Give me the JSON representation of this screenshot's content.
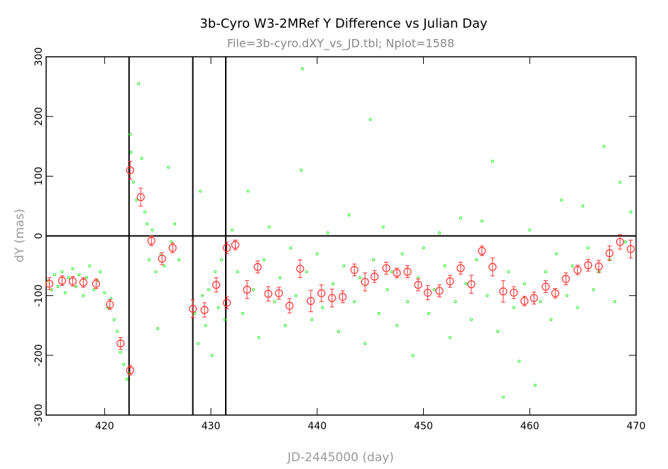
{
  "chart_data": {
    "type": "scatter",
    "title": "3b-Cyro W3-2MRef Y Difference vs Julian Day",
    "subtitle": "File=3b-cyro.dXY_vs_JD.tbl; Nplot=1588",
    "xlabel": "JD-2445000 (day)",
    "ylabel": "dY (mas)",
    "xlim": [
      414.5,
      470
    ],
    "ylim": [
      -300,
      300
    ],
    "xticks": [
      420,
      430,
      440,
      450,
      460,
      470
    ],
    "yticks": [
      -300,
      -200,
      -100,
      0,
      100,
      200,
      300
    ],
    "vlines": [
      422.3,
      428.3,
      431.4
    ],
    "hlines": [
      0
    ],
    "series": [
      {
        "color": "#00ee00",
        "marker": "dot",
        "x": [
          414.7,
          415,
          415.3,
          415.6,
          416,
          416.3,
          416.6,
          417,
          417.3,
          417.6,
          418,
          418.3,
          418.6,
          419,
          419.3,
          419.6,
          420,
          420.3,
          420.6,
          420.9,
          421.2,
          421.5,
          421.8,
          422.1,
          422.3,
          422.4,
          422.5,
          422.7,
          423,
          423.2,
          423.5,
          423.8,
          424,
          424.2,
          424.5,
          424.8,
          425,
          425.3,
          425.6,
          426,
          426.3,
          426.6,
          427,
          428.5,
          428.8,
          429,
          429.2,
          429.5,
          429.8,
          430.1,
          430.4,
          430.7,
          431,
          431.3,
          432,
          432.5,
          433,
          433.5,
          434,
          434.5,
          435,
          435.5,
          436,
          436.5,
          437,
          437.5,
          438,
          438.5,
          438.6,
          439,
          439.5,
          440,
          440.5,
          441,
          441.5,
          442,
          442.5,
          443,
          443.5,
          444,
          444.5,
          445,
          445.3,
          445.8,
          446.2,
          446.6,
          447,
          447.5,
          448,
          448.5,
          449,
          449.5,
          450,
          450.5,
          451,
          451.5,
          452,
          452.5,
          453,
          453.5,
          454,
          454.5,
          455,
          455.5,
          456,
          456.5,
          457,
          457.5,
          458,
          458.5,
          459,
          459.5,
          460,
          460.5,
          461,
          461.5,
          462,
          462.5,
          463,
          463.5,
          464,
          464.5,
          465,
          465.5,
          466,
          466.5,
          467,
          467.5,
          468,
          468.5,
          469,
          469.5
        ],
        "values": [
          -75,
          -90,
          -65,
          -85,
          -60,
          -95,
          -70,
          -55,
          -85,
          -65,
          -100,
          -70,
          -50,
          -90,
          -75,
          -60,
          -95,
          -120,
          -105,
          -140,
          -160,
          -195,
          -215,
          -240,
          -230,
          170,
          140,
          90,
          60,
          255,
          130,
          40,
          20,
          -40,
          10,
          -60,
          -155,
          -30,
          -50,
          115,
          -10,
          20,
          -40,
          -130,
          -180,
          75,
          -100,
          -150,
          -90,
          -200,
          -60,
          -120,
          -40,
          -140,
          10,
          -60,
          -130,
          75,
          -90,
          -170,
          -40,
          15,
          -110,
          -70,
          -150,
          -20,
          -100,
          110,
          280,
          -60,
          -140,
          -30,
          -120,
          5,
          -80,
          -160,
          -50,
          35,
          -110,
          -70,
          -180,
          195,
          -40,
          -130,
          15,
          -90,
          -60,
          -150,
          -30,
          -110,
          -200,
          -70,
          -20,
          -130,
          -90,
          5,
          -50,
          -170,
          -110,
          30,
          -80,
          -140,
          -40,
          25,
          -100,
          125,
          -160,
          -270,
          -60,
          -120,
          -210,
          -80,
          10,
          -250,
          -110,
          -60,
          -140,
          -30,
          60,
          -100,
          -50,
          -120,
          50,
          -20,
          -90,
          -60,
          150,
          -40,
          -110,
          90,
          -10,
          40
        ]
      },
      {
        "color": "#ff3030",
        "marker": "circle",
        "x": [
          414.8,
          416,
          417,
          418,
          419.2,
          420.5,
          421.5,
          422.4,
          422.4,
          423.4,
          424.4,
          425.4,
          426.4,
          428.3,
          429.4,
          430.5,
          431.5,
          431.5,
          432.3,
          433.4,
          434.4,
          435.4,
          436.4,
          437.4,
          438.4,
          439.4,
          440.4,
          441.4,
          442.4,
          443.5,
          444.5,
          445.4,
          446.5,
          447.5,
          448.5,
          449.5,
          450.4,
          451.5,
          452.5,
          453.5,
          454.5,
          455.5,
          456.5,
          457.5,
          458.5,
          459.5,
          460.4,
          461.5,
          462.4,
          463.4,
          464.5,
          465.5,
          466.5,
          467.5,
          468.5,
          469.5
        ],
        "values": [
          -80,
          -75,
          -76,
          -78,
          -80,
          -115,
          -180,
          -225,
          110,
          65,
          -8,
          -38,
          -20,
          -122,
          -124,
          -82,
          -112,
          -20,
          -15,
          -90,
          -52,
          -97,
          -96,
          -117,
          -55,
          -109,
          -96,
          -104,
          -102,
          -57,
          -77,
          -68,
          -54,
          -62,
          -60,
          -82,
          -95,
          -92,
          -76,
          -54,
          -81,
          -25,
          -52,
          -93,
          -95,
          -109,
          -104,
          -85,
          -96,
          -72,
          -57,
          -49,
          -51,
          -29,
          -10,
          -22
        ],
        "errors": [
          10,
          8,
          8,
          8,
          8,
          8,
          10,
          8,
          15,
          15,
          8,
          10,
          8,
          15,
          12,
          12,
          10,
          10,
          8,
          15,
          10,
          12,
          10,
          12,
          15,
          18,
          14,
          15,
          10,
          10,
          15,
          10,
          10,
          8,
          10,
          10,
          12,
          10,
          10,
          10,
          15,
          8,
          15,
          18,
          10,
          8,
          10,
          10,
          8,
          10,
          8,
          10,
          10,
          12,
          12,
          15
        ]
      }
    ]
  }
}
